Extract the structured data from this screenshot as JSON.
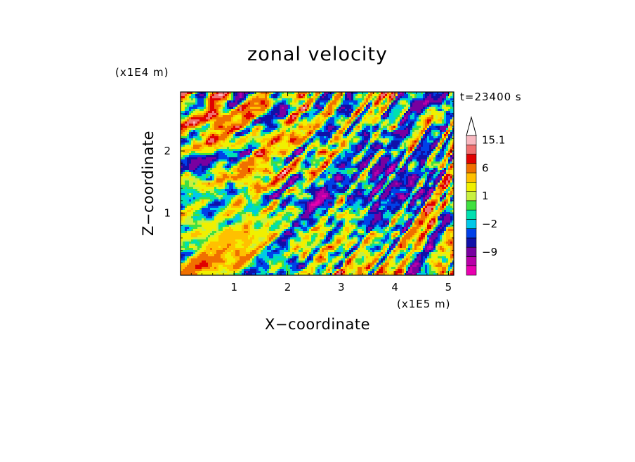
{
  "chart_data": {
    "type": "heatmap",
    "title": "zonal velocity",
    "xlabel": "X−coordinate",
    "ylabel": "Z−coordinate",
    "x_unit": "(x1E5 m)",
    "y_unit": "(x1E4 m)",
    "time_label": "t=23400 s",
    "xlim": [
      0,
      5.1
    ],
    "ylim": [
      0,
      2.95
    ],
    "x_ticks": [
      {
        "value": 1,
        "label": "1"
      },
      {
        "value": 2,
        "label": "2"
      },
      {
        "value": 3,
        "label": "3"
      },
      {
        "value": 4,
        "label": "4"
      },
      {
        "value": 5,
        "label": "5"
      }
    ],
    "y_ticks": [
      {
        "value": 1,
        "label": "1"
      },
      {
        "value": 2,
        "label": "2"
      }
    ],
    "colorbar": {
      "max_label": "15.1",
      "levels": [
        -15,
        -12,
        -9,
        -6,
        -4,
        -2,
        -1,
        0,
        1,
        2,
        4,
        6,
        9,
        12,
        15.1
      ],
      "colors": [
        "#e800b0",
        "#b800a8",
        "#7800a0",
        "#1010a8",
        "#0040e8",
        "#00c8e8",
        "#00e0b0",
        "#40e040",
        "#c8f040",
        "#f0f000",
        "#ffc000",
        "#f07000",
        "#e00000",
        "#f07070",
        "#f8b8c0"
      ],
      "labels": [
        {
          "value": 15.1,
          "label": "15.1"
        },
        {
          "value": 6,
          "label": "6"
        },
        {
          "value": 1,
          "label": "1"
        },
        {
          "value": -2,
          "label": "−2"
        },
        {
          "value": -9,
          "label": "−9"
        }
      ]
    }
  }
}
